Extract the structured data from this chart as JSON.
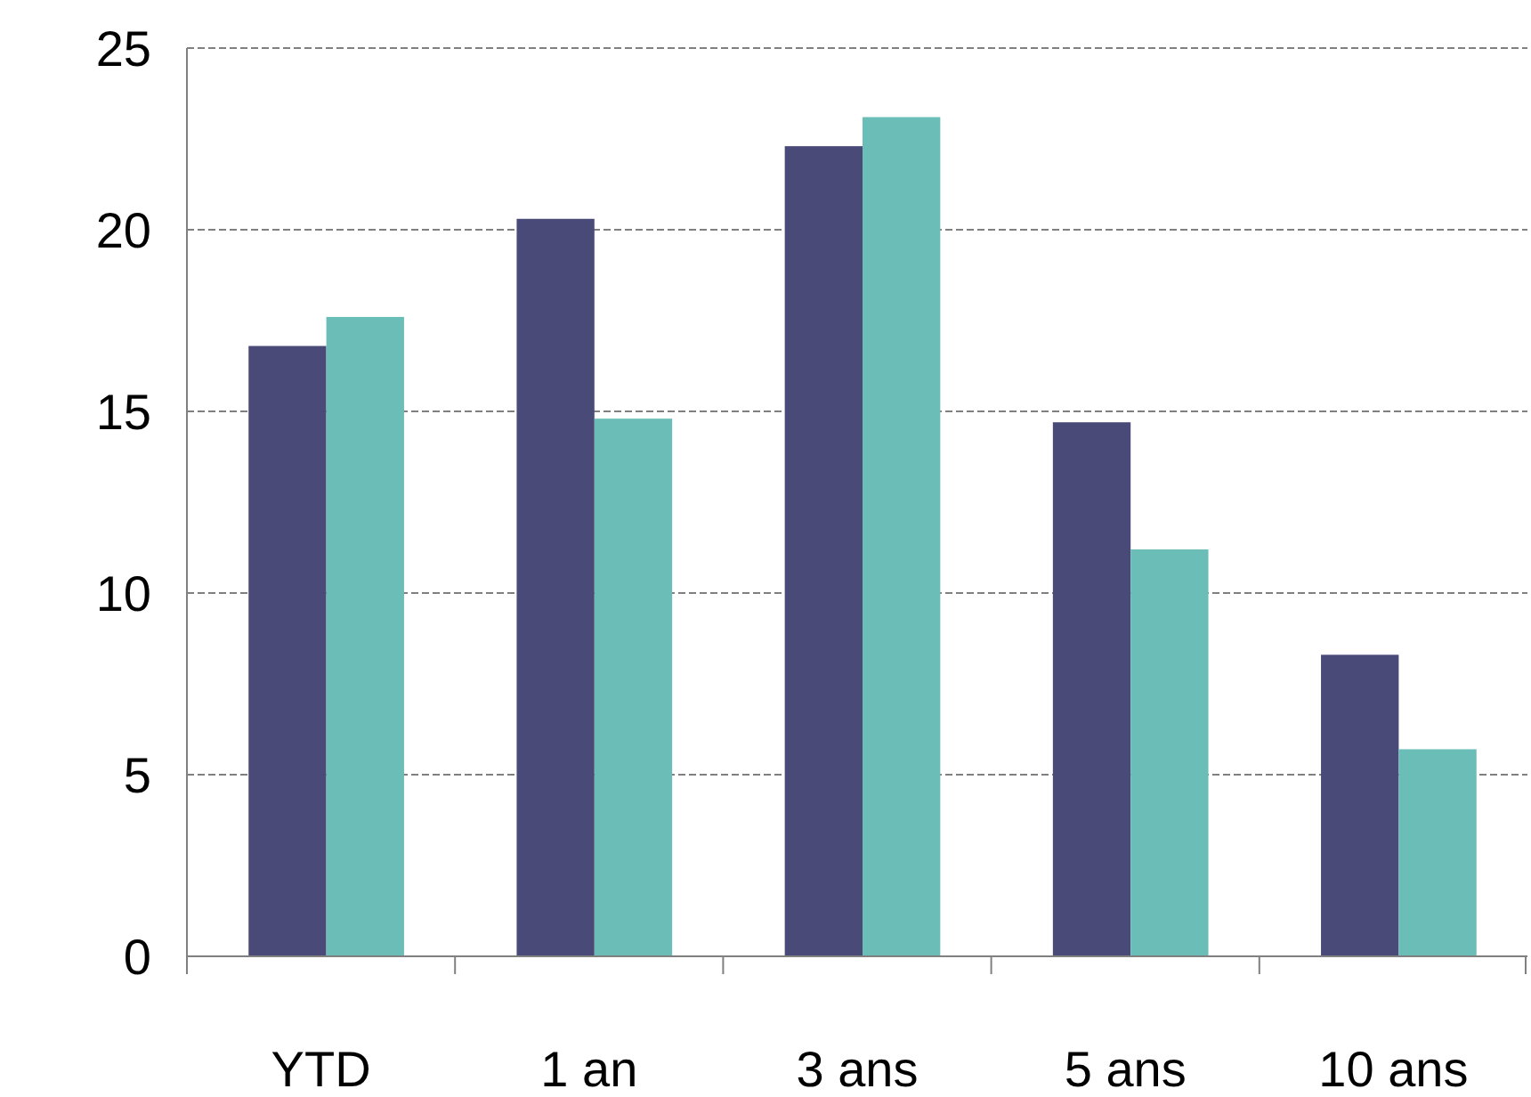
{
  "chart_data": {
    "type": "bar",
    "categories": [
      "YTD",
      "1 an",
      "3 ans",
      "5 ans",
      "10 ans"
    ],
    "series": [
      {
        "color": "#4a4a78",
        "values": [
          16.8,
          20.3,
          22.3,
          14.7,
          8.3
        ]
      },
      {
        "color": "#6bbdb8",
        "values": [
          17.6,
          14.8,
          23.1,
          11.2,
          5.7
        ]
      }
    ],
    "ylim": [
      0,
      25
    ],
    "yticks": [
      0,
      5,
      10,
      15,
      20,
      25
    ],
    "grid": "y"
  }
}
